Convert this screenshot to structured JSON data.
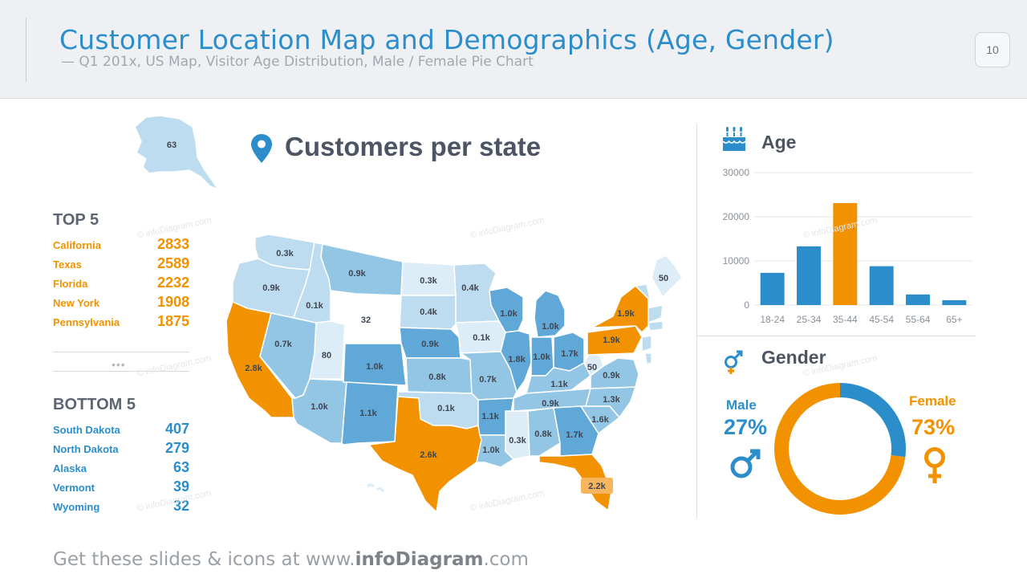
{
  "header": {
    "title": "Customer Location Map and Demographics (Age, Gender)",
    "subtitle": "— Q1 201x, US Map, Visitor Age Distribution, Male / Female Pie Chart",
    "page_number": "10"
  },
  "ranking": {
    "top_title": "TOP 5",
    "top": [
      {
        "name": "California",
        "value": "2833"
      },
      {
        "name": "Texas",
        "value": "2589"
      },
      {
        "name": "Florida",
        "value": "2232"
      },
      {
        "name": "New York",
        "value": "1908"
      },
      {
        "name": "Pennsylvania",
        "value": "1875"
      }
    ],
    "more": "•••",
    "bottom_title": "BOTTOM 5",
    "bottom": [
      {
        "name": "South Dakota",
        "value": "407"
      },
      {
        "name": "North Dakota",
        "value": "279"
      },
      {
        "name": "Alaska",
        "value": "63"
      },
      {
        "name": "Vermont",
        "value": "39"
      },
      {
        "name": "Wyoming",
        "value": "32"
      }
    ]
  },
  "map": {
    "title": "Customers per state",
    "icon": "map-pin-icon",
    "states": [
      {
        "code": "AK",
        "label": "63",
        "tone": "light"
      },
      {
        "code": "WA",
        "label": "0.3k",
        "tone": "light"
      },
      {
        "code": "OR",
        "label": "0.9k",
        "tone": "light"
      },
      {
        "code": "CA",
        "label": "2.8k",
        "tone": "orange"
      },
      {
        "code": "NV",
        "label": "0.7k",
        "tone": "mid"
      },
      {
        "code": "ID",
        "label": "0.1k",
        "tone": "light"
      },
      {
        "code": "MT",
        "label": "0.9k",
        "tone": "mid"
      },
      {
        "code": "WY",
        "label": "32",
        "tone": "white"
      },
      {
        "code": "UT",
        "label": "80",
        "tone": "vlight"
      },
      {
        "code": "AZ",
        "label": "1.0k",
        "tone": "mid"
      },
      {
        "code": "CO",
        "label": "1.0k",
        "tone": "dark"
      },
      {
        "code": "NM",
        "label": "1.1k",
        "tone": "dark"
      },
      {
        "code": "ND",
        "label": "0.3k",
        "tone": "vlight"
      },
      {
        "code": "SD",
        "label": "0.4k",
        "tone": "light"
      },
      {
        "code": "NE",
        "label": "0.9k",
        "tone": "dark"
      },
      {
        "code": "KS",
        "label": "0.8k",
        "tone": "mid"
      },
      {
        "code": "OK",
        "label": "0.1k",
        "tone": "light"
      },
      {
        "code": "TX",
        "label": "2.6k",
        "tone": "orange"
      },
      {
        "code": "MN",
        "label": "0.4k",
        "tone": "light"
      },
      {
        "code": "IA",
        "label": "0.1k",
        "tone": "vlight"
      },
      {
        "code": "MO",
        "label": "0.7k",
        "tone": "mid"
      },
      {
        "code": "AR",
        "label": "1.1k",
        "tone": "dark"
      },
      {
        "code": "LA",
        "label": "1.0k",
        "tone": "mid"
      },
      {
        "code": "WI",
        "label": "1.0k",
        "tone": "dark"
      },
      {
        "code": "IL",
        "label": "1.8k",
        "tone": "dark"
      },
      {
        "code": "MI",
        "label": "1.0k",
        "tone": "dark"
      },
      {
        "code": "IN",
        "label": "1.0k",
        "tone": "dark"
      },
      {
        "code": "OH",
        "label": "1.7k",
        "tone": "dark"
      },
      {
        "code": "KY",
        "label": "1.1k",
        "tone": "mid"
      },
      {
        "code": "TN",
        "label": "0.9k",
        "tone": "mid"
      },
      {
        "code": "MS",
        "label": "0.3k",
        "tone": "vlight"
      },
      {
        "code": "AL",
        "label": "0.8k",
        "tone": "mid"
      },
      {
        "code": "GA",
        "label": "1.7k",
        "tone": "dark"
      },
      {
        "code": "FL",
        "label": "2.2k",
        "tone": "orange"
      },
      {
        "code": "SC",
        "label": "1.6k",
        "tone": "mid"
      },
      {
        "code": "NC",
        "label": "1.3k",
        "tone": "mid"
      },
      {
        "code": "VA",
        "label": "0.9k",
        "tone": "mid"
      },
      {
        "code": "WV",
        "label": "50",
        "tone": "vlight"
      },
      {
        "code": "PA",
        "label": "1.9k",
        "tone": "orange"
      },
      {
        "code": "NY",
        "label": "1.9k",
        "tone": "orange"
      },
      {
        "code": "ME",
        "label": "50",
        "tone": "vlight"
      }
    ]
  },
  "chart_data": [
    {
      "type": "bar",
      "title": "Age",
      "categories": [
        "18-24",
        "25-34",
        "35-44",
        "45-54",
        "55-64",
        "65+"
      ],
      "values": [
        7300,
        13300,
        23100,
        8800,
        2400,
        1100
      ],
      "highlight_category": "35-44",
      "ylim": [
        0,
        30000
      ],
      "yticks": [
        0,
        10000,
        20000,
        30000
      ],
      "grid": true,
      "colors": {
        "bar": "#2b8ecb",
        "highlight": "#f39200"
      }
    },
    {
      "type": "pie",
      "title": "Gender",
      "donut": true,
      "slices": [
        {
          "label": "Male",
          "value": 27,
          "display": "27%",
          "color": "#2b8ecb"
        },
        {
          "label": "Female",
          "value": 73,
          "display": "73%",
          "color": "#f39200"
        }
      ]
    }
  ],
  "footer": {
    "prefix": "Get these slides & icons at www.",
    "brand": "infoDiagram",
    "suffix": ".com"
  },
  "watermark": "© infoDiagram.com",
  "colors": {
    "accent_blue": "#2b8ecb",
    "accent_orange": "#f39200",
    "map_dark": "#5fa8d8",
    "map_mid": "#93c6e4",
    "map_light": "#bddcef",
    "map_vlight": "#dcedf7"
  }
}
